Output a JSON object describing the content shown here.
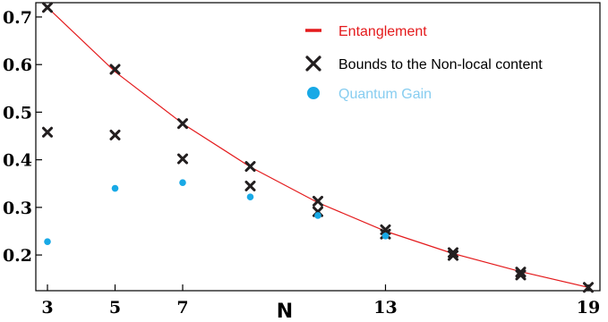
{
  "chart_data": {
    "type": "scatter",
    "title": "",
    "xlabel": "N",
    "ylabel": "",
    "xlim": [
      3,
      19
    ],
    "ylim": [
      0.125,
      0.73
    ],
    "x_ticks": [
      3,
      5,
      7,
      13,
      19
    ],
    "y_ticks": [
      0.2,
      0.3,
      0.4,
      0.5,
      0.6,
      0.7
    ],
    "grid": false,
    "legend_position": "top-right",
    "series": [
      {
        "name": "Entanglement",
        "kind": "line",
        "color": "#e41a1c",
        "x": [
          3,
          5,
          7,
          9,
          11,
          13,
          15,
          17,
          19
        ],
        "y": [
          0.72,
          0.585,
          0.476,
          0.385,
          0.31,
          0.25,
          0.203,
          0.165,
          0.132
        ]
      },
      {
        "name": "Bounds to the Non-local content",
        "kind": "marker",
        "marker": "x",
        "color": "#231f20",
        "x": [
          3,
          5,
          7,
          9,
          11,
          13,
          15,
          17,
          19,
          3,
          5,
          7,
          9,
          11,
          13,
          15,
          17
        ],
        "y": [
          0.72,
          0.59,
          0.476,
          0.386,
          0.313,
          0.253,
          0.205,
          0.164,
          0.132,
          0.458,
          0.452,
          0.402,
          0.345,
          0.291,
          0.244,
          0.199,
          0.158
        ]
      },
      {
        "name": "Quantum Gain",
        "kind": "marker",
        "marker": "circle",
        "color": "#18a9e6",
        "x": [
          3,
          5,
          7,
          9,
          11,
          13
        ],
        "y": [
          0.228,
          0.34,
          0.352,
          0.322,
          0.283,
          0.24
        ]
      }
    ]
  }
}
